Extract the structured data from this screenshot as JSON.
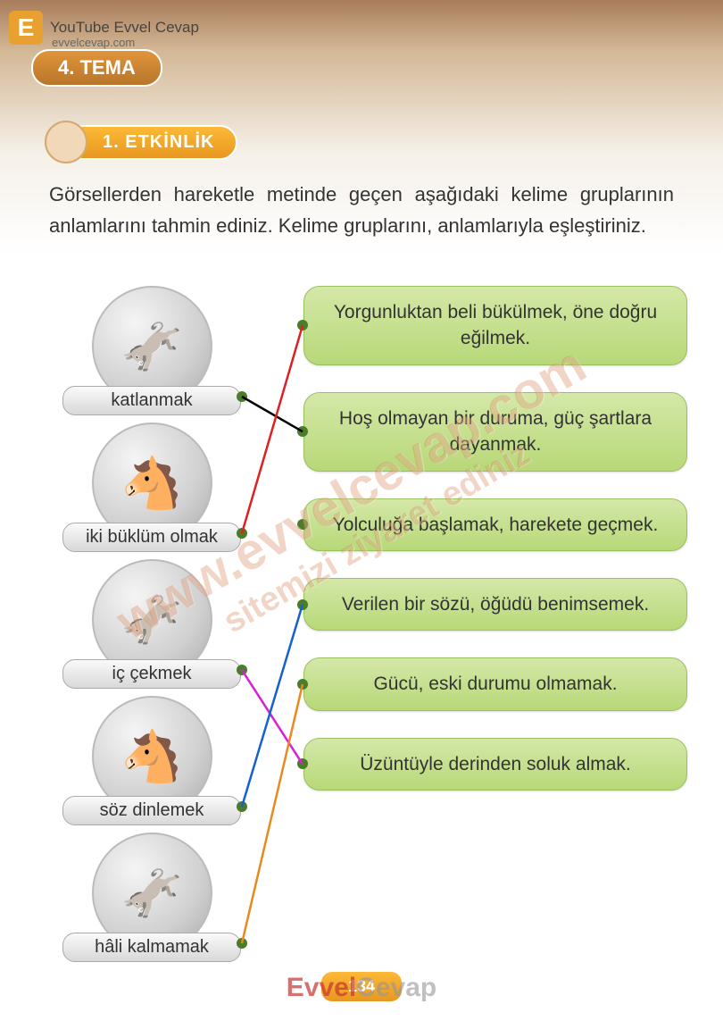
{
  "header": {
    "badge_letter": "E",
    "youtube_text": "YouTube Evvel Cevap",
    "site_text": "evvelcevap.com",
    "tema_label": "4. TEMA"
  },
  "activity": {
    "label": "1. ETKİNLİK"
  },
  "instruction": "Görsellerden hareketle metinde geçen aşağıdaki kelime gruplarının anlamlarını tahmin ediniz. Kelime gruplarını, anlamlarıyla eşleştiriniz.",
  "words": [
    {
      "label": "katlanmak",
      "emoji": "🫏"
    },
    {
      "label": "iki büklüm olmak",
      "emoji": "🐴"
    },
    {
      "label": "iç çekmek",
      "emoji": "🫏"
    },
    {
      "label": "söz dinlemek",
      "emoji": "🐴"
    },
    {
      "label": "hâli kalmamak",
      "emoji": "🫏"
    }
  ],
  "definitions": [
    "Yorgunluktan beli bükülmek, öne doğru eğilmek.",
    "Hoş olmayan bir duruma, güç şartlara dayanmak.",
    "Yolculuğa başlamak, harekete geçmek.",
    "Verilen bir sözü, öğüdü benimsemek.",
    "Gücü, eski durumu olmamak.",
    "Üzüntüyle derinden soluk almak."
  ],
  "connections": [
    {
      "from": 0,
      "to": 1,
      "color": "#000000"
    },
    {
      "from": 1,
      "to": 0,
      "color": "#e02020"
    },
    {
      "from": 2,
      "to": 5,
      "color": "#d820d8"
    },
    {
      "from": 3,
      "to": 3,
      "color": "#1560d0"
    },
    {
      "from": 4,
      "to": 4,
      "color": "#e88a20"
    }
  ],
  "page_number": "134",
  "watermark_main": "www.evvelcevap.com",
  "watermark_sub": "sitemizi ziyaret ediniz",
  "footer_brand_1": "Evvel",
  "footer_brand_2": "Cevap",
  "colors": {
    "green_box_top": "#d4e8a8",
    "green_box_bottom": "#b8d878",
    "orange_top": "#fcb936",
    "orange_bottom": "#e89820",
    "dot": "#4a7c2a"
  }
}
